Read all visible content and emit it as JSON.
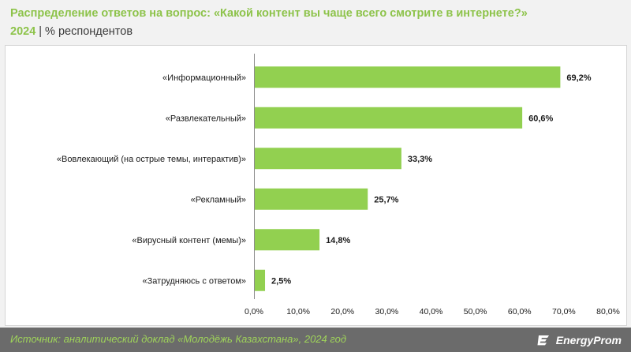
{
  "header": {
    "title": "Распределение ответов на вопрос: «Какой контент вы чаще всего смотрите в интернете?»",
    "year": "2024",
    "separator": "|",
    "unit": "% респондентов"
  },
  "chart_data": {
    "type": "bar",
    "orientation": "horizontal",
    "categories": [
      "«Информационный»",
      "«Развлекательный»",
      "«Вовлекающий (на острые темы, интерактив)»",
      "«Рекламный»",
      "«Вирусный контент (мемы)»",
      "«Затрудняюсь с ответом»"
    ],
    "values": [
      69.2,
      60.6,
      33.3,
      25.7,
      14.8,
      2.5
    ],
    "value_labels": [
      "69,2%",
      "60,6%",
      "33,3%",
      "25,7%",
      "14,8%",
      "2,5%"
    ],
    "xlim": [
      0,
      80
    ],
    "ticks": [
      0,
      10,
      20,
      30,
      40,
      50,
      60,
      70,
      80
    ],
    "tick_labels": [
      "0,0%",
      "10,0%",
      "20,0%",
      "30,0%",
      "40,0%",
      "50,0%",
      "60,0%",
      "70,0%",
      "80,0%"
    ],
    "grid": false,
    "legend": "none",
    "bar_color": "#92d050"
  },
  "footer": {
    "source": "Источник: аналитический доклад «Молодёжь Казахстана», 2024 год",
    "logo_text": "EnergyProm",
    "logo_icon": "energyprom-logo-icon"
  },
  "colors": {
    "title": "#8dc34a",
    "bar": "#92d050",
    "footer_bg": "#6b6b6b",
    "source_text": "#9fd35a"
  }
}
